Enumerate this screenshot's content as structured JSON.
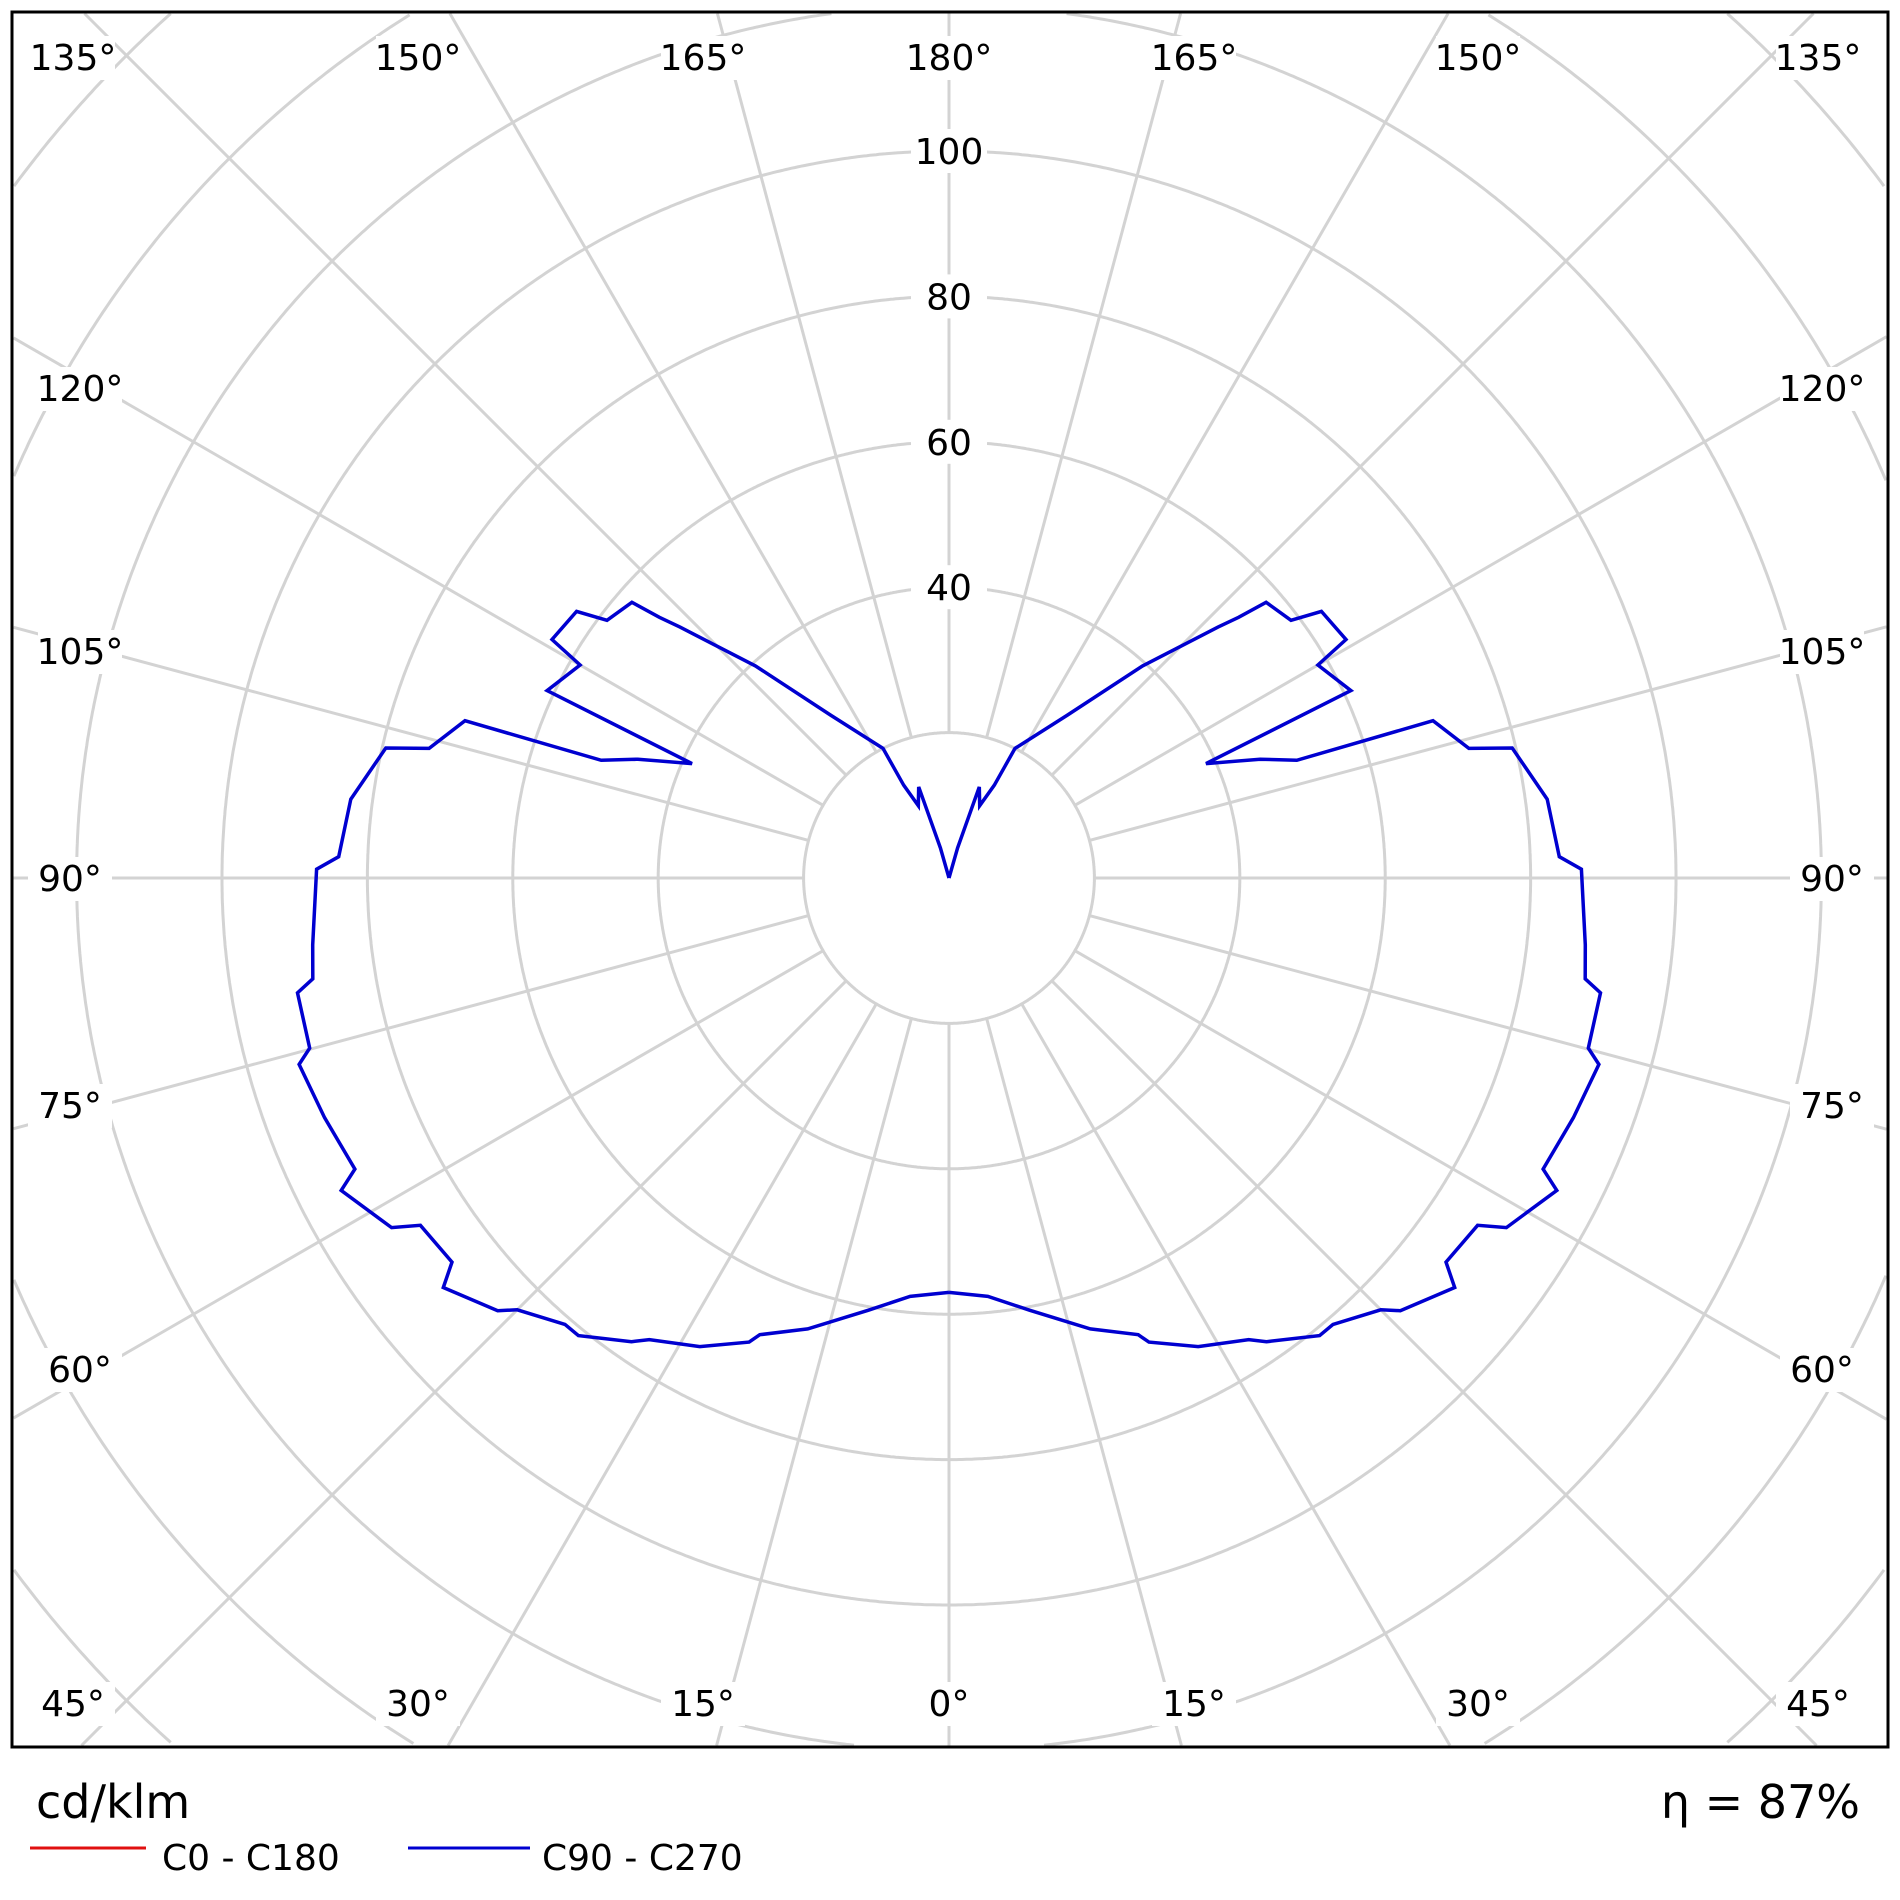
{
  "chart_data": {
    "type": "polar-line",
    "unit_label": "cd/klm",
    "efficiency_label": "η = 87%",
    "radial_ticks": [
      40,
      60,
      80,
      100
    ],
    "radial_rings": [
      20,
      40,
      60,
      80,
      100,
      120,
      140,
      160,
      180
    ],
    "angle_step_deg": 15,
    "angle_labels": {
      "top": [
        "135°",
        "150°",
        "165°",
        "180°",
        "165°",
        "150°",
        "135°"
      ],
      "left": [
        "120°",
        "105°",
        "90°",
        "75°",
        "60°"
      ],
      "right": [
        "120°",
        "105°",
        "90°",
        "75°",
        "60°"
      ],
      "bottom": [
        "45°",
        "30°",
        "15°",
        "0°",
        "15°",
        "30°",
        "45°"
      ]
    },
    "grid": true,
    "legend_position": "bottom-left",
    "series": [
      {
        "name": "C0 - C180",
        "color": "#e01010",
        "points": []
      },
      {
        "name": "C90 - C270",
        "color": "#0000d0",
        "points": [
          [
            0,
            57
          ],
          [
            5.3,
            57.8
          ],
          [
            10.6,
            60.5
          ],
          [
            17.4,
            65
          ],
          [
            22.5,
            68
          ],
          [
            23.3,
            69.5
          ],
          [
            28,
            73
          ],
          [
            33,
            75.7
          ],
          [
            34.4,
            77.3
          ],
          [
            39,
            81
          ],
          [
            40.7,
            81
          ],
          [
            45,
            84
          ],
          [
            46.2,
            86
          ],
          [
            51,
            89.5
          ],
          [
            52.3,
            86.4
          ],
          [
            56.7,
            87
          ],
          [
            57.9,
            90.5
          ],
          [
            62.8,
            94
          ],
          [
            63.9,
            91
          ],
          [
            69,
            92
          ],
          [
            74,
            93
          ],
          [
            75.1,
            91
          ],
          [
            80,
            91
          ],
          [
            81,
            88.6
          ],
          [
            84,
            88
          ],
          [
            90.8,
            87
          ],
          [
            92,
            84
          ],
          [
            97.5,
            83
          ],
          [
            103,
            79.5
          ],
          [
            104,
            73.7
          ],
          [
            108,
            70
          ],
          [
            108.7,
            50.5
          ],
          [
            110.9,
            45.8
          ],
          [
            114,
            38.7
          ],
          [
            115,
            61
          ],
          [
            120,
            58.6
          ],
          [
            121,
            63.7
          ],
          [
            125.6,
            63
          ],
          [
            127,
            58.9
          ],
          [
            131,
            57.8
          ],
          [
            132,
            53.6
          ],
          [
            133,
            50.6
          ],
          [
            137.6,
            39.5
          ],
          [
            144,
            27.7
          ],
          [
            153,
            20
          ],
          [
            154,
            14.2
          ],
          [
            157,
            10.8
          ],
          [
            161.6,
            13.2
          ],
          [
            164,
            4.3
          ],
          [
            180,
            0
          ]
        ]
      }
    ]
  }
}
